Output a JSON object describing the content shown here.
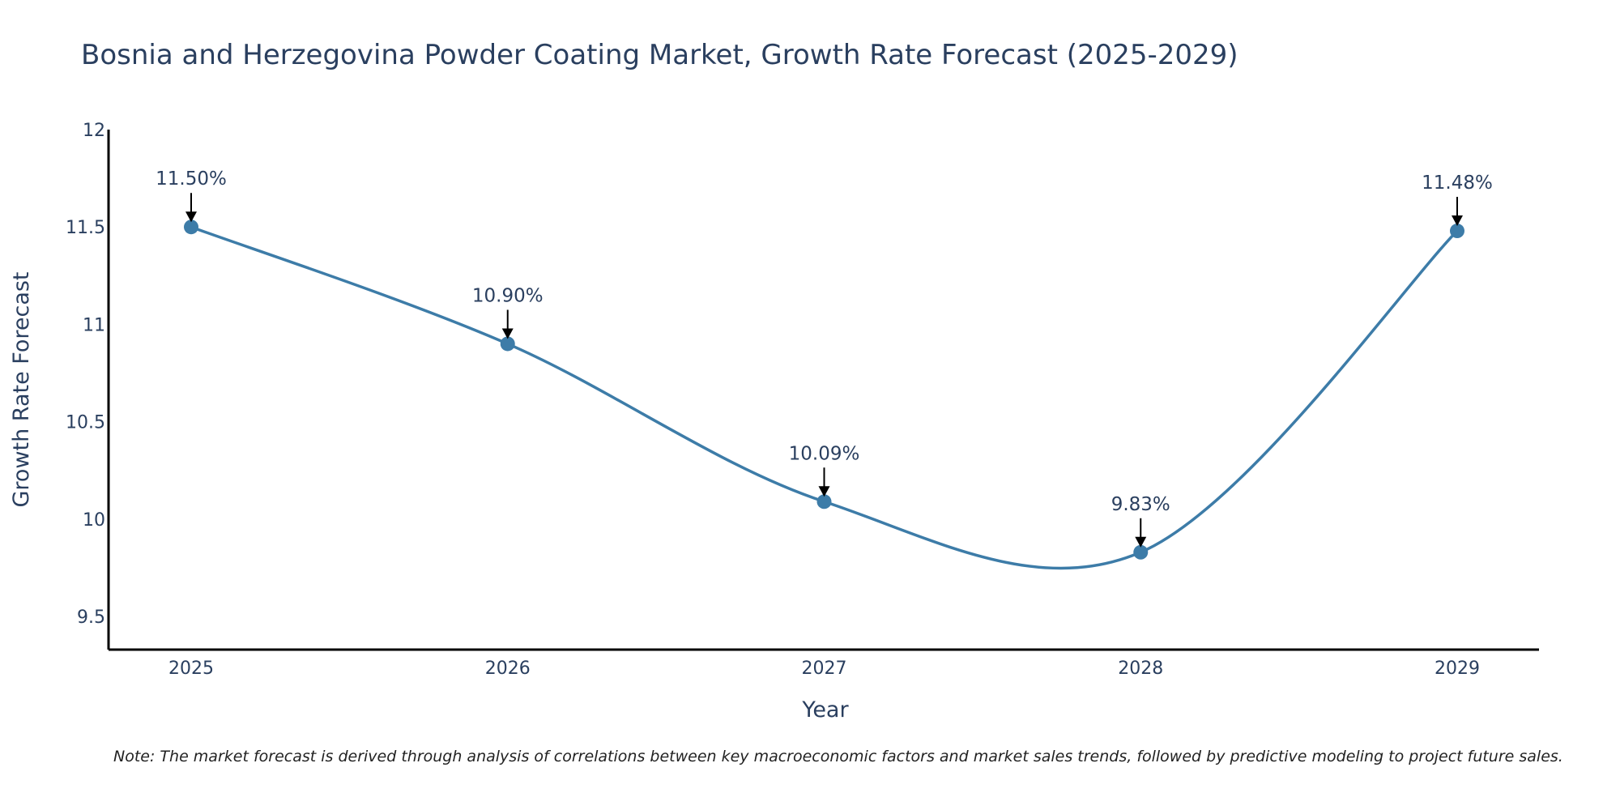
{
  "chart_data": {
    "type": "line",
    "title": "Bosnia and Herzegovina Powder Coating Market, Growth Rate Forecast (2025-2029)",
    "xlabel": "Year",
    "ylabel": "Growth Rate Forecast",
    "categories": [
      "2025",
      "2026",
      "2027",
      "2028",
      "2029"
    ],
    "series": [
      {
        "name": "Growth Rate Forecast",
        "values": [
          11.5,
          10.9,
          10.09,
          9.83,
          11.48
        ],
        "data_labels": [
          "11.50%",
          "10.90%",
          "10.09%",
          "9.83%",
          "11.48%"
        ]
      }
    ],
    "y_ticks": [
      9.5,
      10,
      10.5,
      11,
      11.5,
      12
    ],
    "y_tick_labels": [
      "9.5",
      "10",
      "10.5",
      "11",
      "11.5",
      "12"
    ],
    "ylim": [
      9.33,
      12
    ],
    "grid": false,
    "line_color": "#3d7ca8",
    "marker_color": "#3d7ca8",
    "note": "Note: The market forecast is derived through analysis of correlations between key macroeconomic factors and market sales trends, followed by predictive modeling to project future sales."
  }
}
